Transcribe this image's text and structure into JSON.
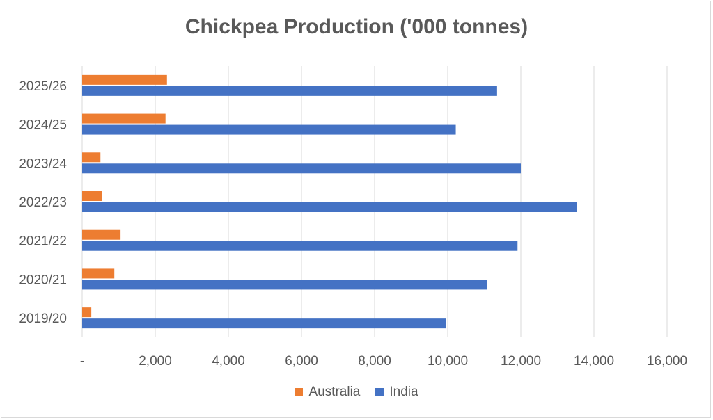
{
  "chart_data": {
    "type": "bar",
    "orientation": "horizontal",
    "title": "Chickpea Production ('000 tonnes)",
    "categories": [
      "2019/20",
      "2020/21",
      "2021/22",
      "2022/23",
      "2023/24",
      "2024/25",
      "2025/26"
    ],
    "series": [
      {
        "name": "Australia",
        "color": "#ed7d31",
        "values": [
          250,
          880,
          1050,
          550,
          500,
          2280,
          2320
        ]
      },
      {
        "name": "India",
        "color": "#4472c4",
        "values": [
          9950,
          11080,
          11910,
          13540,
          12000,
          10220,
          11350
        ]
      }
    ],
    "xlim": [
      0,
      16000
    ],
    "x_ticks": [
      0,
      2000,
      4000,
      6000,
      8000,
      10000,
      12000,
      14000,
      16000
    ],
    "x_tick_labels": [
      "-",
      "2,000",
      "4,000",
      "6,000",
      "8,000",
      "10,000",
      "12,000",
      "14,000",
      "16,000"
    ],
    "grid": true,
    "legend_position": "bottom"
  }
}
